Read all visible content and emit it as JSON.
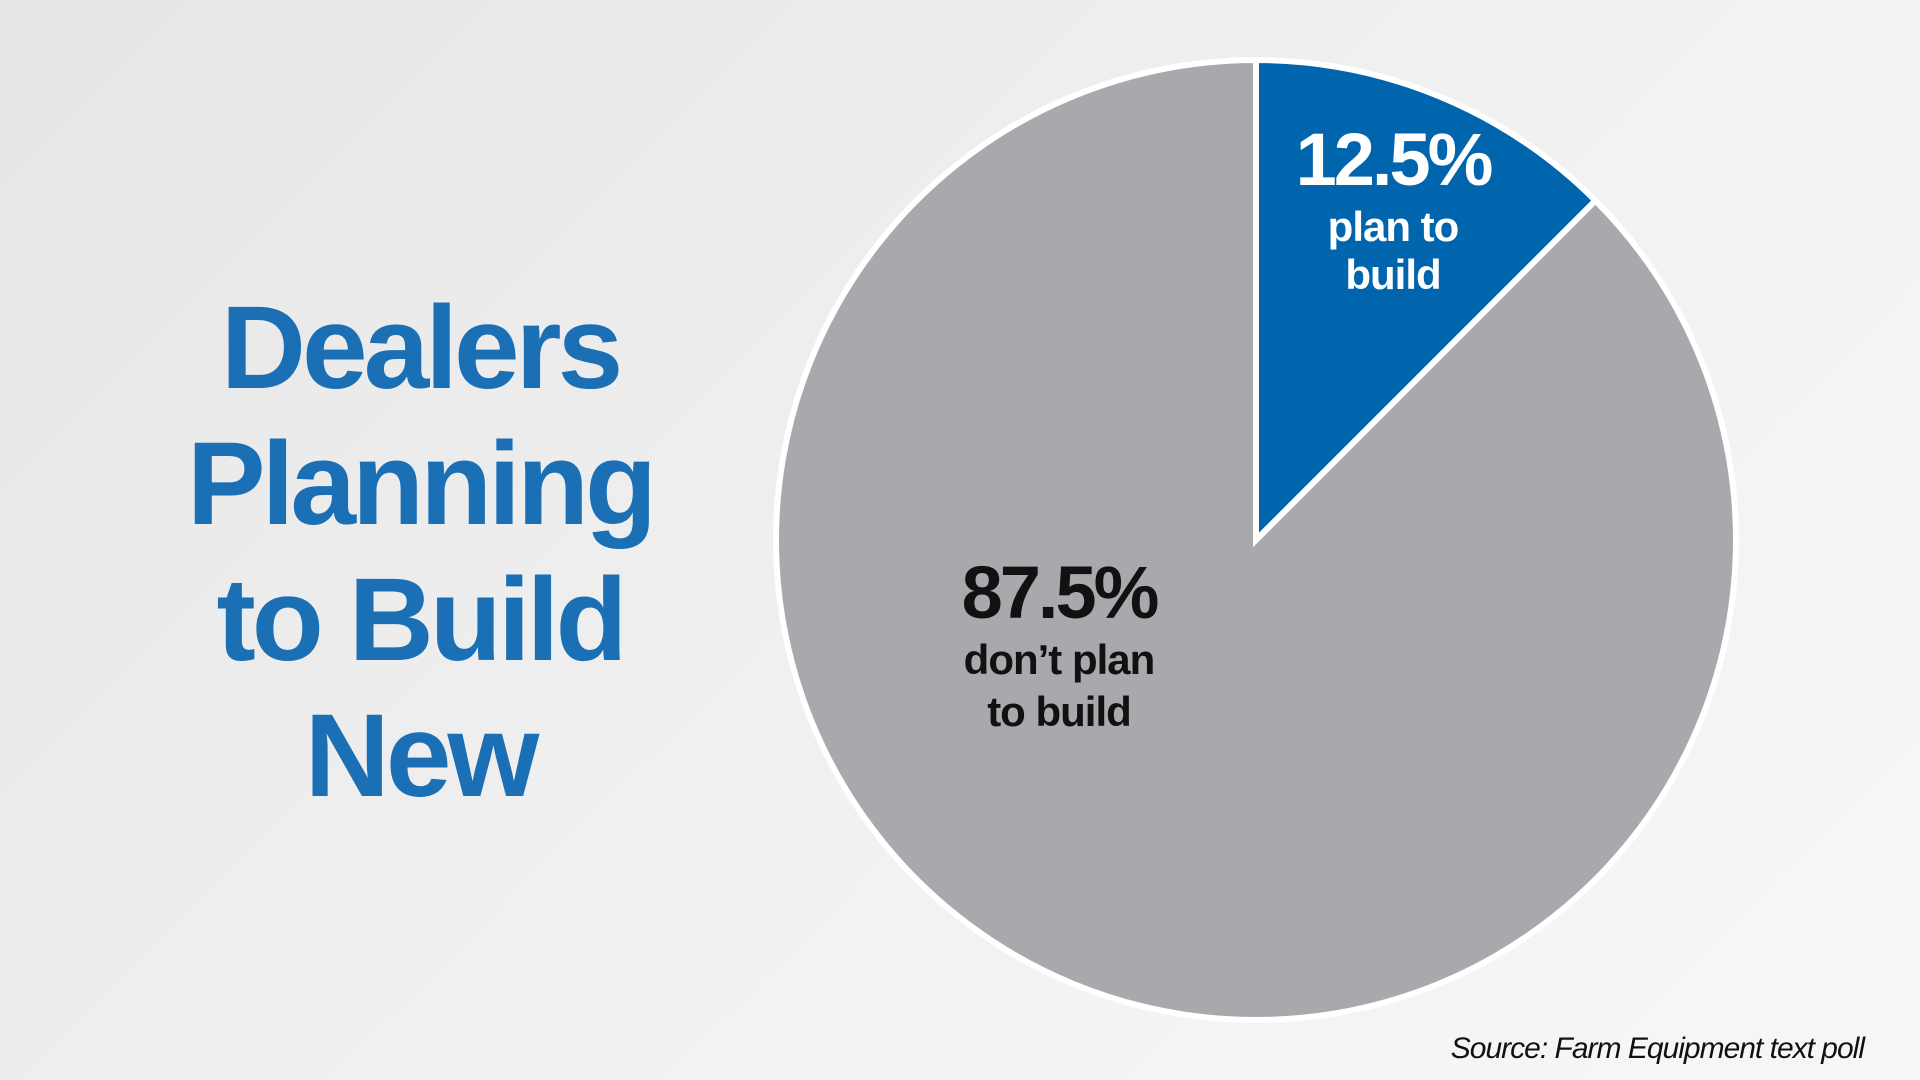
{
  "title_lines": [
    "Dealers",
    "Planning",
    "to Build",
    "New"
  ],
  "source": "Source: Farm Equipment text poll",
  "colors": {
    "title": "#1a6fb5",
    "plan": "#0065ad",
    "dont_plan": "#a8a9ad",
    "stroke": "#ffffff"
  },
  "chart_data": {
    "type": "pie",
    "title": "Dealers Planning to Build New",
    "slices": [
      {
        "label": "plan to build",
        "value": 12.5,
        "value_text": "12.5%",
        "label_lines": [
          "plan to",
          "build"
        ],
        "color": "#0065ad",
        "text_color": "#ffffff"
      },
      {
        "label": "don’t plan to build",
        "value": 87.5,
        "value_text": "87.5%",
        "label_lines": [
          "don’t plan",
          "to build"
        ],
        "color": "#a8a9ad",
        "text_color": "#111111"
      }
    ],
    "start_angle": "12 o'clock, clockwise",
    "legend": "none",
    "source": "Source: Farm Equipment text poll"
  }
}
